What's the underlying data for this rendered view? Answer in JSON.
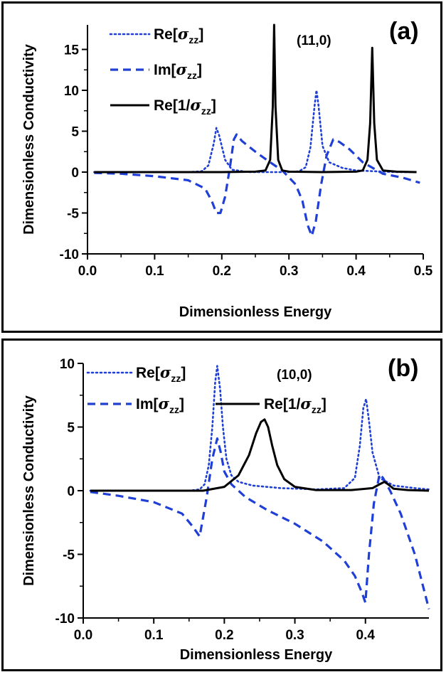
{
  "figure": {
    "panels": [
      {
        "panel_label": "(a)",
        "annotation": "(11,0)",
        "xlabel": "Dimensionless Energy",
        "ylabel": "Dimensionless Conductivity"
      },
      {
        "panel_label": "(b)",
        "annotation": "(10,0)",
        "xlabel": "Dimensionless Energy",
        "ylabel": "Dimensionless Conductivity"
      }
    ]
  },
  "chart_data": [
    {
      "type": "line",
      "panel_label": "(a)",
      "annotation": "(11,0)",
      "xlabel": "Dimensionless Energy",
      "ylabel": "Dimensionless Conductivity",
      "xlim": [
        0.0,
        0.5
      ],
      "ylim": [
        -10,
        18
      ],
      "xticks": [
        0.0,
        0.1,
        0.2,
        0.3,
        0.4,
        0.5
      ],
      "xtick_labels": [
        "0.0",
        "0.1",
        "0.2",
        "0.3",
        "0.4",
        "0.5"
      ],
      "yticks": [
        -10,
        -5,
        0,
        5,
        10,
        15
      ],
      "ytick_labels": [
        "-10",
        "-5",
        "0",
        "5",
        "10",
        "15"
      ],
      "grid": false,
      "legend_position": "top-left",
      "series": [
        {
          "name_main": "Re[",
          "name_sym": "σ",
          "name_sub": "zz",
          "name_tail": "]",
          "style": "dotted",
          "color": "#1f3fd6",
          "x": [
            0.01,
            0.1,
            0.15,
            0.17,
            0.18,
            0.188,
            0.192,
            0.196,
            0.205,
            0.215,
            0.24,
            0.28,
            0.3,
            0.315,
            0.325,
            0.332,
            0.338,
            0.341,
            0.344,
            0.35,
            0.36,
            0.38,
            0.4,
            0.43,
            0.46,
            0.49
          ],
          "y": [
            0.0,
            0.0,
            0.0,
            0.1,
            0.8,
            3.5,
            5.4,
            4.5,
            1.5,
            0.3,
            0.0,
            0.0,
            0.0,
            0.1,
            0.6,
            3.0,
            8.0,
            10.0,
            8.2,
            3.2,
            1.2,
            0.5,
            0.2,
            0.1,
            0.0,
            0.0
          ]
        },
        {
          "name_main": "Im[",
          "name_sym": "σ",
          "name_sub": "zz",
          "name_tail": "]",
          "style": "dashed",
          "color": "#1f3fd6",
          "x": [
            0.01,
            0.05,
            0.1,
            0.15,
            0.175,
            0.185,
            0.192,
            0.198,
            0.205,
            0.212,
            0.218,
            0.222,
            0.23,
            0.25,
            0.27,
            0.29,
            0.31,
            0.32,
            0.328,
            0.334,
            0.34,
            0.348,
            0.356,
            0.366,
            0.375,
            0.39,
            0.41,
            0.44,
            0.47,
            0.495
          ],
          "y": [
            -0.1,
            -0.2,
            -0.5,
            -1.0,
            -2.0,
            -3.5,
            -5.0,
            -5.0,
            -3.0,
            0.5,
            4.0,
            4.6,
            3.8,
            2.5,
            1.3,
            0.2,
            -1.5,
            -3.5,
            -6.5,
            -7.8,
            -6.0,
            -1.5,
            2.0,
            4.0,
            3.7,
            2.8,
            1.2,
            -0.2,
            -0.7,
            -1.3
          ]
        },
        {
          "name_main": "Re[1/",
          "name_sym": "σ",
          "name_sub": "zz",
          "name_tail": "]",
          "style": "solid",
          "color": "#000000",
          "x": [
            0.01,
            0.2,
            0.25,
            0.265,
            0.272,
            0.276,
            0.278,
            0.28,
            0.284,
            0.29,
            0.3,
            0.35,
            0.4,
            0.41,
            0.417,
            0.421,
            0.424,
            0.427,
            0.431,
            0.44,
            0.46,
            0.49
          ],
          "y": [
            0.0,
            0.0,
            0.05,
            0.2,
            1.5,
            8.0,
            18.0,
            8.0,
            1.5,
            0.2,
            0.05,
            0.0,
            0.05,
            0.2,
            1.5,
            6.0,
            15.2,
            6.0,
            1.5,
            0.2,
            0.05,
            0.0
          ]
        }
      ]
    },
    {
      "type": "line",
      "panel_label": "(b)",
      "annotation": "(10,0)",
      "xlabel": "Dimensionless Energy",
      "ylabel": "Dimensionless Conductivity",
      "xlim": [
        0.0,
        0.49
      ],
      "ylim": [
        -10,
        10
      ],
      "xticks": [
        0.0,
        0.1,
        0.2,
        0.3,
        0.4
      ],
      "xtick_labels": [
        "0.0",
        "0.1",
        "0.2",
        "0.3",
        "0.4"
      ],
      "yticks": [
        -10,
        -5,
        0,
        5,
        10
      ],
      "ytick_labels": [
        "-10",
        "-5",
        "0",
        "5",
        "10"
      ],
      "grid": false,
      "legend_position": "top",
      "series": [
        {
          "name_main": "Re[",
          "name_sym": "σ",
          "name_sub": "zz",
          "name_tail": "]",
          "style": "dotted",
          "color": "#1f3fd6",
          "x": [
            0.01,
            0.15,
            0.165,
            0.172,
            0.178,
            0.183,
            0.187,
            0.19,
            0.194,
            0.198,
            0.203,
            0.21,
            0.22,
            0.24,
            0.28,
            0.33,
            0.37,
            0.385,
            0.392,
            0.397,
            0.401,
            0.405,
            0.41,
            0.42,
            0.44,
            0.47,
            0.49
          ],
          "y": [
            0.0,
            0.0,
            0.1,
            0.5,
            2.0,
            5.0,
            8.5,
            9.8,
            8.0,
            5.0,
            2.5,
            1.2,
            0.7,
            0.4,
            0.2,
            0.1,
            0.2,
            1.0,
            3.5,
            6.5,
            7.2,
            5.5,
            3.0,
            1.0,
            0.4,
            0.2,
            0.1
          ]
        },
        {
          "name_main": "Im[",
          "name_sym": "σ",
          "name_sub": "zz",
          "name_tail": "]",
          "style": "dashed",
          "color": "#1f3fd6",
          "x": [
            0.01,
            0.05,
            0.1,
            0.14,
            0.155,
            0.165,
            0.175,
            0.183,
            0.19,
            0.195,
            0.2,
            0.21,
            0.23,
            0.26,
            0.3,
            0.34,
            0.37,
            0.385,
            0.395,
            0.4,
            0.405,
            0.412,
            0.42,
            0.425,
            0.435,
            0.45,
            0.47,
            0.49
          ],
          "y": [
            -0.1,
            -0.4,
            -0.9,
            -1.8,
            -2.8,
            -3.6,
            -0.5,
            2.5,
            4.1,
            3.0,
            1.5,
            0.5,
            -0.5,
            -1.5,
            -2.6,
            -4.0,
            -5.5,
            -6.7,
            -8.0,
            -8.8,
            -5.0,
            -1.0,
            1.3,
            1.0,
            0.0,
            -1.8,
            -5.0,
            -9.3
          ]
        },
        {
          "name_main": "Re[1/",
          "name_sym": "σ",
          "name_sub": "zz",
          "name_tail": "]",
          "style": "solid",
          "color": "#000000",
          "x": [
            0.01,
            0.17,
            0.2,
            0.22,
            0.235,
            0.245,
            0.252,
            0.257,
            0.262,
            0.268,
            0.275,
            0.285,
            0.3,
            0.33,
            0.38,
            0.41,
            0.42,
            0.427,
            0.432,
            0.44,
            0.46,
            0.49
          ],
          "y": [
            0.0,
            0.0,
            0.3,
            1.2,
            2.8,
            4.5,
            5.4,
            5.6,
            5.0,
            3.5,
            2.0,
            0.9,
            0.3,
            0.05,
            0.05,
            0.2,
            0.5,
            0.7,
            0.5,
            0.15,
            0.05,
            0.0
          ]
        }
      ]
    }
  ]
}
